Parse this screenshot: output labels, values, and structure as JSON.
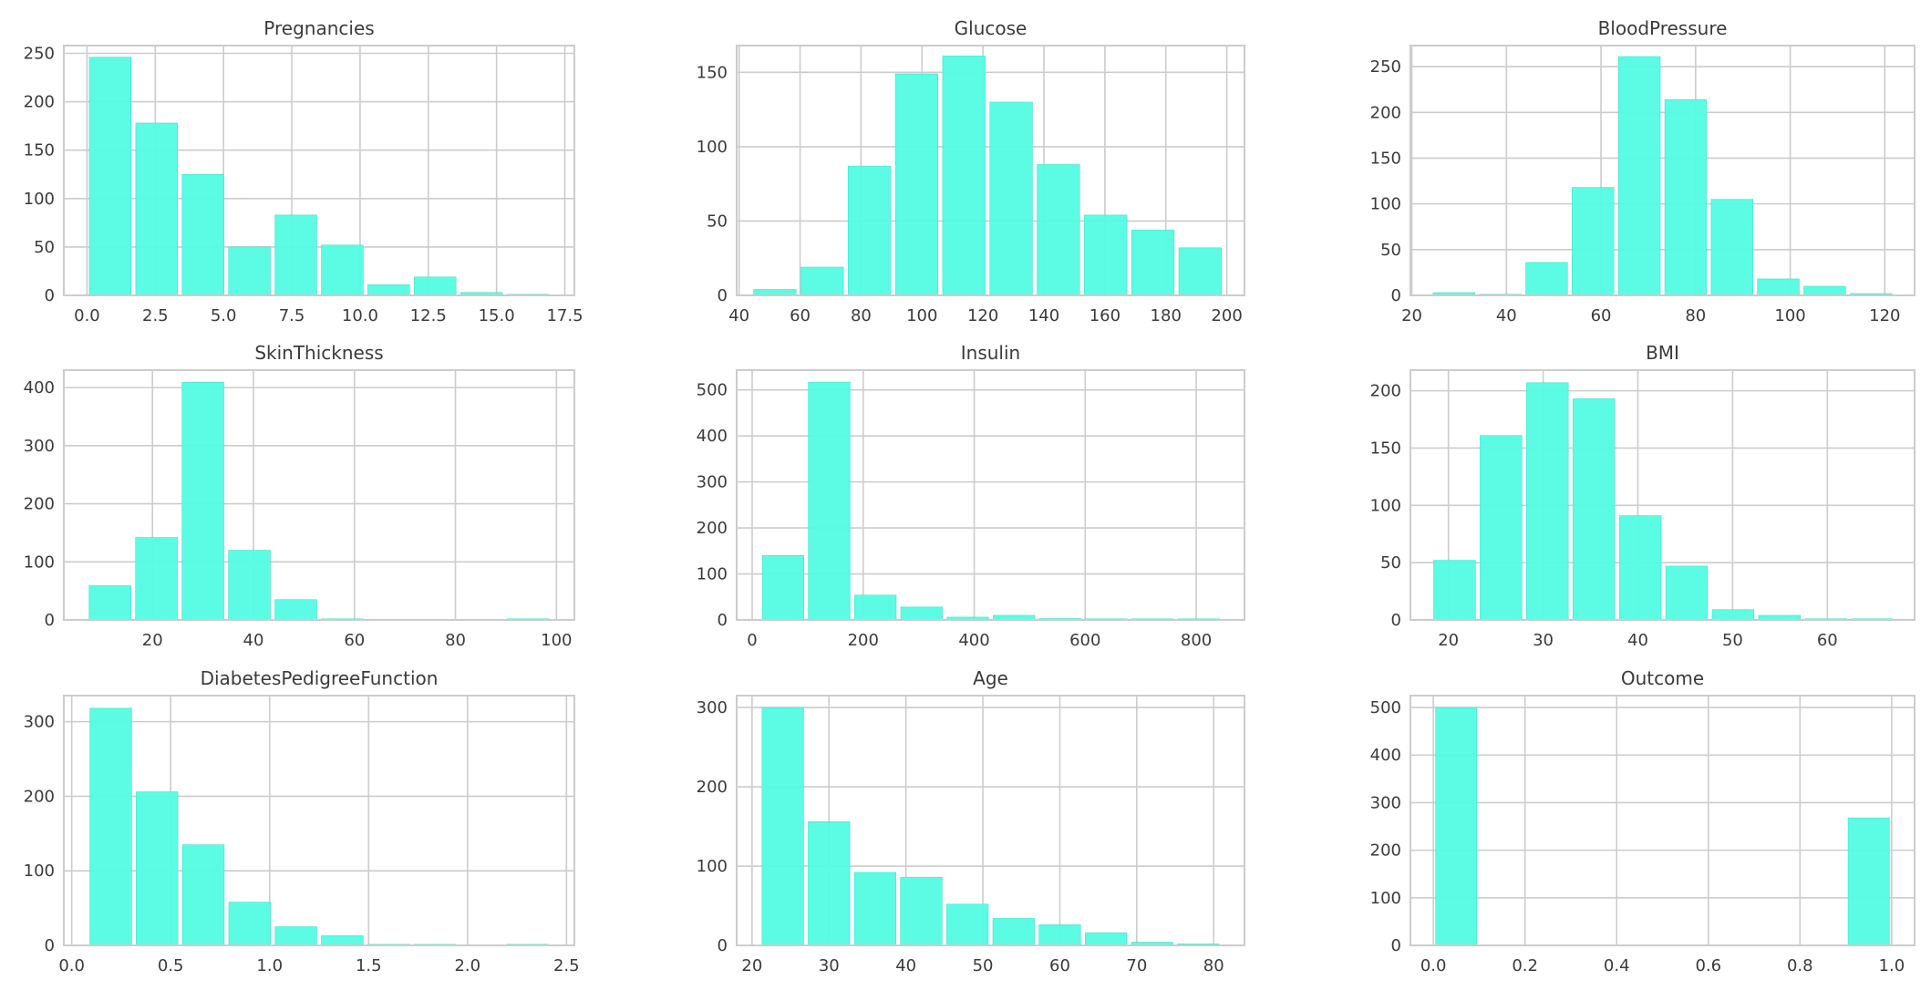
{
  "chart_data": [
    {
      "type": "bar",
      "title": "Pregnancies",
      "xlim": [
        -0.85,
        17.85
      ],
      "ylim": [
        0,
        258
      ],
      "xticks": [
        0,
        2.5,
        5,
        7.5,
        10,
        12.5,
        15,
        17.5
      ],
      "xtick_labels": [
        "0.0",
        "2.5",
        "5.0",
        "7.5",
        "10.0",
        "12.5",
        "15.0",
        "17.5"
      ],
      "yticks": [
        0,
        50,
        100,
        150,
        200,
        250
      ],
      "bars": [
        {
          "x0": 0,
          "x1": 1.7,
          "value": 246
        },
        {
          "x0": 1.7,
          "x1": 3.4,
          "value": 178
        },
        {
          "x0": 3.4,
          "x1": 5.1,
          "value": 125
        },
        {
          "x0": 5.1,
          "x1": 6.8,
          "value": 50
        },
        {
          "x0": 6.8,
          "x1": 8.5,
          "value": 83
        },
        {
          "x0": 8.5,
          "x1": 10.2,
          "value": 52
        },
        {
          "x0": 10.2,
          "x1": 11.9,
          "value": 11
        },
        {
          "x0": 11.9,
          "x1": 13.6,
          "value": 19
        },
        {
          "x0": 13.6,
          "x1": 15.3,
          "value": 3
        },
        {
          "x0": 15.3,
          "x1": 17.0,
          "value": 1
        }
      ]
    },
    {
      "type": "bar",
      "title": "Glucose",
      "xlim": [
        39.2,
        205.8
      ],
      "ylim": [
        0,
        168
      ],
      "xticks": [
        40,
        60,
        80,
        100,
        120,
        140,
        160,
        180,
        200
      ],
      "xtick_labels": [
        "40",
        "60",
        "80",
        "100",
        "120",
        "140",
        "160",
        "180",
        "200"
      ],
      "yticks": [
        0,
        50,
        100,
        150
      ],
      "bars": [
        {
          "x0": 44,
          "x1": 59.5,
          "value": 4
        },
        {
          "x0": 59.5,
          "x1": 75,
          "value": 19
        },
        {
          "x0": 75,
          "x1": 90.5,
          "value": 87
        },
        {
          "x0": 90.5,
          "x1": 106,
          "value": 149
        },
        {
          "x0": 106,
          "x1": 121.5,
          "value": 161
        },
        {
          "x0": 121.5,
          "x1": 137,
          "value": 130
        },
        {
          "x0": 137,
          "x1": 152.5,
          "value": 88
        },
        {
          "x0": 152.5,
          "x1": 168,
          "value": 54
        },
        {
          "x0": 168,
          "x1": 183.5,
          "value": 44
        },
        {
          "x0": 183.5,
          "x1": 199,
          "value": 32
        }
      ]
    },
    {
      "type": "bar",
      "title": "BloodPressure",
      "xlim": [
        19.7,
        126.3
      ],
      "ylim": [
        0,
        273
      ],
      "xticks": [
        20,
        40,
        60,
        80,
        100,
        120
      ],
      "xtick_labels": [
        "20",
        "40",
        "60",
        "80",
        "100",
        "120"
      ],
      "yticks": [
        0,
        50,
        100,
        150,
        200,
        250
      ],
      "bars": [
        {
          "x0": 24,
          "x1": 33.8,
          "value": 3
        },
        {
          "x0": 33.8,
          "x1": 43.6,
          "value": 1
        },
        {
          "x0": 43.6,
          "x1": 53.4,
          "value": 36
        },
        {
          "x0": 53.4,
          "x1": 63.2,
          "value": 118
        },
        {
          "x0": 63.2,
          "x1": 73,
          "value": 261
        },
        {
          "x0": 73,
          "x1": 82.8,
          "value": 214
        },
        {
          "x0": 82.8,
          "x1": 92.6,
          "value": 105
        },
        {
          "x0": 92.6,
          "x1": 102.4,
          "value": 18
        },
        {
          "x0": 102.4,
          "x1": 112.2,
          "value": 10
        },
        {
          "x0": 112.2,
          "x1": 122,
          "value": 2
        }
      ]
    },
    {
      "type": "bar",
      "title": "SkinThickness",
      "xlim": [
        2.45,
        103.55
      ],
      "ylim": [
        0,
        430
      ],
      "xticks": [
        20,
        40,
        60,
        80,
        100
      ],
      "xtick_labels": [
        "20",
        "40",
        "60",
        "80",
        "100"
      ],
      "yticks": [
        0,
        100,
        200,
        300,
        400
      ],
      "bars": [
        {
          "x0": 7,
          "x1": 16.2,
          "value": 59
        },
        {
          "x0": 16.2,
          "x1": 25.4,
          "value": 142
        },
        {
          "x0": 25.4,
          "x1": 34.6,
          "value": 409
        },
        {
          "x0": 34.6,
          "x1": 43.8,
          "value": 120
        },
        {
          "x0": 43.8,
          "x1": 53,
          "value": 35
        },
        {
          "x0": 53,
          "x1": 62.2,
          "value": 1
        },
        {
          "x0": 62.2,
          "x1": 71.4,
          "value": 0
        },
        {
          "x0": 71.4,
          "x1": 80.6,
          "value": 0
        },
        {
          "x0": 80.6,
          "x1": 89.8,
          "value": 0
        },
        {
          "x0": 89.8,
          "x1": 99,
          "value": 1
        }
      ]
    },
    {
      "type": "bar",
      "title": "Insulin",
      "xlim": [
        -27.95,
        886.95
      ],
      "ylim": [
        0,
        543
      ],
      "xticks": [
        0,
        200,
        400,
        600,
        800
      ],
      "xtick_labels": [
        "0",
        "200",
        "400",
        "600",
        "800"
      ],
      "yticks": [
        0,
        100,
        200,
        300,
        400,
        500
      ],
      "bars": [
        {
          "x0": 14,
          "x1": 97.2,
          "value": 140
        },
        {
          "x0": 97.2,
          "x1": 180.4,
          "value": 517
        },
        {
          "x0": 180.4,
          "x1": 263.6,
          "value": 54
        },
        {
          "x0": 263.6,
          "x1": 346.8,
          "value": 28
        },
        {
          "x0": 346.8,
          "x1": 430,
          "value": 6
        },
        {
          "x0": 430,
          "x1": 513.2,
          "value": 10
        },
        {
          "x0": 513.2,
          "x1": 596.4,
          "value": 3
        },
        {
          "x0": 596.4,
          "x1": 679.6,
          "value": 2
        },
        {
          "x0": 679.6,
          "x1": 762.8,
          "value": 2
        },
        {
          "x0": 762.8,
          "x1": 846,
          "value": 1
        }
      ]
    },
    {
      "type": "bar",
      "title": "BMI",
      "xlim": [
        15.99,
        69.21
      ],
      "ylim": [
        0,
        218
      ],
      "xticks": [
        20,
        30,
        40,
        50,
        60
      ],
      "xtick_labels": [
        "20",
        "30",
        "40",
        "50",
        "60"
      ],
      "yticks": [
        0,
        50,
        100,
        150,
        200
      ],
      "bars": [
        {
          "x0": 18.2,
          "x1": 23.1,
          "value": 52
        },
        {
          "x0": 23.1,
          "x1": 28,
          "value": 161
        },
        {
          "x0": 28,
          "x1": 32.9,
          "value": 207
        },
        {
          "x0": 32.9,
          "x1": 37.8,
          "value": 193
        },
        {
          "x0": 37.8,
          "x1": 42.7,
          "value": 91
        },
        {
          "x0": 42.7,
          "x1": 47.6,
          "value": 47
        },
        {
          "x0": 47.6,
          "x1": 52.5,
          "value": 9
        },
        {
          "x0": 52.5,
          "x1": 57.4,
          "value": 4
        },
        {
          "x0": 57.4,
          "x1": 62.3,
          "value": 1
        },
        {
          "x0": 62.3,
          "x1": 67.1,
          "value": 1
        }
      ]
    },
    {
      "type": "bar",
      "title": "DiabetesPedigreeFunction",
      "xlim": [
        -0.04,
        2.54
      ],
      "ylim": [
        0,
        335
      ],
      "xticks": [
        0,
        0.5,
        1.0,
        1.5,
        2.0,
        2.5
      ],
      "xtick_labels": [
        "0.0",
        "0.5",
        "1.0",
        "1.5",
        "2.0",
        "2.5"
      ],
      "yticks": [
        0,
        100,
        200,
        300
      ],
      "bars": [
        {
          "x0": 0.08,
          "x1": 0.314,
          "value": 318
        },
        {
          "x0": 0.314,
          "x1": 0.548,
          "value": 206
        },
        {
          "x0": 0.548,
          "x1": 0.782,
          "value": 135
        },
        {
          "x0": 0.782,
          "x1": 1.016,
          "value": 58
        },
        {
          "x0": 1.016,
          "x1": 1.25,
          "value": 25
        },
        {
          "x0": 1.25,
          "x1": 1.484,
          "value": 13
        },
        {
          "x0": 1.484,
          "x1": 1.718,
          "value": 1
        },
        {
          "x0": 1.718,
          "x1": 1.952,
          "value": 1
        },
        {
          "x0": 1.952,
          "x1": 2.186,
          "value": 0
        },
        {
          "x0": 2.186,
          "x1": 2.42,
          "value": 1
        }
      ]
    },
    {
      "type": "bar",
      "title": "Age",
      "xlim": [
        18,
        84
      ],
      "ylim": [
        0,
        315
      ],
      "xticks": [
        20,
        30,
        40,
        50,
        60,
        70,
        80
      ],
      "xtick_labels": [
        "20",
        "30",
        "40",
        "50",
        "60",
        "70",
        "80"
      ],
      "yticks": [
        0,
        100,
        200,
        300
      ],
      "bars": [
        {
          "x0": 21,
          "x1": 27,
          "value": 300
        },
        {
          "x0": 27,
          "x1": 33,
          "value": 156
        },
        {
          "x0": 33,
          "x1": 39,
          "value": 92
        },
        {
          "x0": 39,
          "x1": 45,
          "value": 86
        },
        {
          "x0": 45,
          "x1": 51,
          "value": 52
        },
        {
          "x0": 51,
          "x1": 57,
          "value": 34
        },
        {
          "x0": 57,
          "x1": 63,
          "value": 26
        },
        {
          "x0": 63,
          "x1": 69,
          "value": 16
        },
        {
          "x0": 69,
          "x1": 75,
          "value": 4
        },
        {
          "x0": 75,
          "x1": 81,
          "value": 2
        }
      ]
    },
    {
      "type": "bar",
      "title": "Outcome",
      "xlim": [
        -0.05,
        1.05
      ],
      "ylim": [
        0,
        525
      ],
      "xticks": [
        0,
        0.2,
        0.4,
        0.6,
        0.8,
        1.0
      ],
      "xtick_labels": [
        "0.0",
        "0.2",
        "0.4",
        "0.6",
        "0.8",
        "1.0"
      ],
      "yticks": [
        0,
        100,
        200,
        300,
        400,
        500
      ],
      "bars": [
        {
          "x0": 0,
          "x1": 0.1,
          "value": 500
        },
        {
          "x0": 0.1,
          "x1": 0.2,
          "value": 0
        },
        {
          "x0": 0.2,
          "x1": 0.3,
          "value": 0
        },
        {
          "x0": 0.3,
          "x1": 0.4,
          "value": 0
        },
        {
          "x0": 0.4,
          "x1": 0.5,
          "value": 0
        },
        {
          "x0": 0.5,
          "x1": 0.6,
          "value": 0
        },
        {
          "x0": 0.6,
          "x1": 0.7,
          "value": 0
        },
        {
          "x0": 0.7,
          "x1": 0.8,
          "value": 0
        },
        {
          "x0": 0.8,
          "x1": 0.9,
          "value": 0
        },
        {
          "x0": 0.9,
          "x1": 1.0,
          "value": 268
        }
      ]
    }
  ],
  "style": {
    "bar_color": "#53fbe1",
    "bar_edge_color": "#3fe6cc",
    "grid_color": "#cccccc",
    "frame_color": "#cccccc",
    "text_color": "#3b3b3b",
    "background": "#ffffff",
    "grid": true
  }
}
